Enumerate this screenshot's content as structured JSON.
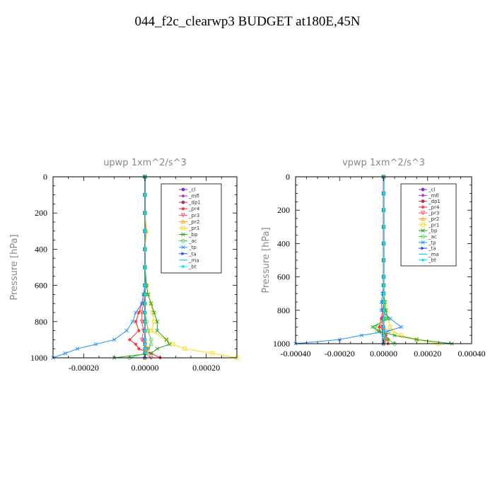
{
  "title": "044_f2c_clearwp3  BUDGET at180E,45N",
  "chart_data": [
    {
      "type": "line",
      "title": "upwp   1xm^2/s^3",
      "xlabel": "",
      "ylabel": "Pressure [hPa]",
      "xlim": [
        -0.0003,
        0.0003
      ],
      "ylim": [
        1000,
        0
      ],
      "x_ticks": [
        "-0.00020",
        "0.00000",
        "0.00020"
      ],
      "y_ticks": [
        "0",
        "200",
        "400",
        "600",
        "800",
        "1000"
      ],
      "legend_position": "top-right",
      "y": [
        0,
        100,
        200,
        300,
        400,
        500,
        600,
        650,
        700,
        750,
        800,
        850,
        900,
        925,
        950,
        975,
        1000
      ],
      "series": [
        {
          "name": "_cl",
          "color": "#8a2be2",
          "marker": "circle",
          "values": [
            0,
            0,
            0,
            0,
            0,
            0,
            0,
            0,
            0,
            0,
            0,
            0,
            0,
            0,
            0,
            0,
            0
          ]
        },
        {
          "name": "_mfl",
          "color": "#9932cc",
          "marker": "diamond",
          "values": [
            0,
            0,
            0,
            0,
            0,
            0,
            0,
            0,
            0,
            0,
            0,
            0,
            0,
            0,
            0,
            0,
            0
          ]
        },
        {
          "name": "_dp1",
          "color": "#b03060",
          "marker": "circle",
          "values": [
            0,
            0,
            0,
            0,
            0,
            0,
            0,
            0,
            0,
            0,
            0,
            0,
            0,
            0,
            0,
            0,
            0
          ]
        },
        {
          "name": "_pr4",
          "color": "#ff2020",
          "marker": "star",
          "values": [
            0,
            0,
            0,
            0,
            0,
            0,
            5e-06,
            -5e-06,
            -1e-05,
            -2e-05,
            -3e-05,
            -2e-05,
            -5e-05,
            -3e-05,
            -2e-05,
            2e-05,
            5e-05
          ]
        },
        {
          "name": "_pr3",
          "color": "#ff4060",
          "marker": "triangle-down",
          "values": [
            0,
            0,
            0,
            0,
            0,
            0,
            0,
            0,
            -5e-06,
            -1e-05,
            -1e-05,
            -5e-06,
            -1e-05,
            0,
            1e-05,
            0,
            2e-05
          ]
        },
        {
          "name": "_pr2",
          "color": "#ffa500",
          "marker": "triangle",
          "values": [
            0,
            0,
            0,
            5e-06,
            0,
            0,
            0,
            0,
            0,
            0,
            0,
            0,
            0,
            0,
            0,
            0,
            0
          ]
        },
        {
          "name": "_pr1",
          "color": "#ffd700",
          "marker": "square",
          "values": [
            0,
            0,
            0,
            0,
            0,
            0,
            5e-06,
            1e-05,
            2e-05,
            2.5e-05,
            3e-05,
            2e-05,
            7e-05,
            9e-05,
            0.00013,
            0.00022,
            0.0003
          ]
        },
        {
          "name": "_bp",
          "color": "#20a020",
          "marker": "x",
          "values": [
            0,
            0,
            0,
            0,
            0,
            0,
            5e-06,
            1e-05,
            2e-05,
            3e-05,
            4e-05,
            4e-05,
            7e-05,
            8e-05,
            4e-05,
            2e-05,
            -0.0001
          ]
        },
        {
          "name": "_ac",
          "color": "#40d040",
          "marker": "circle-open",
          "values": [
            0,
            0,
            0,
            0,
            0,
            0,
            0,
            0,
            0,
            0,
            5e-06,
            1e-05,
            2e-05,
            2e-05,
            1e-05,
            0,
            -5e-05
          ]
        },
        {
          "name": "_tp",
          "color": "#1e90ff",
          "marker": "x",
          "values": [
            0,
            0,
            0,
            0,
            0,
            0,
            0,
            -5e-06,
            -1e-05,
            -3e-05,
            -4e-05,
            -6e-05,
            -0.0001,
            -0.00016,
            -0.00022,
            -0.00026,
            -0.0003
          ]
        },
        {
          "name": "_ta",
          "color": "#2040ff",
          "marker": "triangle-right",
          "values": [
            0,
            0,
            0,
            0,
            0,
            0,
            0,
            0,
            0,
            0,
            0,
            0,
            0,
            0,
            0,
            0,
            0
          ]
        },
        {
          "name": "_ma",
          "color": "#00bfff",
          "marker": "dash",
          "values": [
            0,
            0,
            0,
            0,
            0,
            0,
            0,
            0,
            0,
            0,
            0,
            0,
            0,
            0,
            0,
            0,
            0
          ]
        },
        {
          "name": "_bt",
          "color": "#00e5ee",
          "marker": "diamond",
          "values": [
            0,
            0,
            0,
            0,
            0,
            0,
            0,
            0,
            0,
            0,
            0,
            0,
            0,
            0,
            0,
            0,
            0
          ]
        }
      ]
    },
    {
      "type": "line",
      "title": "vpwp   1xm^2/s^3",
      "xlabel": "",
      "ylabel": "Pressure [hPa]",
      "xlim": [
        -0.0004,
        0.0004
      ],
      "ylim": [
        1000,
        0
      ],
      "x_ticks": [
        "-0.00040",
        "-0.00020",
        "0.00000",
        "0.00020",
        "0.00040"
      ],
      "y_ticks": [
        "0",
        "200",
        "400",
        "600",
        "800",
        "1000"
      ],
      "legend_position": "top-right",
      "y": [
        0,
        100,
        200,
        300,
        400,
        500,
        600,
        650,
        700,
        750,
        800,
        850,
        900,
        925,
        950,
        975,
        1000
      ],
      "series": [
        {
          "name": "_cl",
          "color": "#8a2be2",
          "marker": "circle",
          "values": [
            0,
            0,
            0,
            0,
            0,
            0,
            0,
            0,
            0,
            0,
            0,
            0,
            0,
            0,
            0,
            0,
            0
          ]
        },
        {
          "name": "_mfl",
          "color": "#9932cc",
          "marker": "diamond",
          "values": [
            0,
            0,
            0,
            0,
            0,
            0,
            0,
            0,
            0,
            0,
            0,
            0,
            0,
            0,
            0,
            0,
            0
          ]
        },
        {
          "name": "_dp1",
          "color": "#b03060",
          "marker": "circle",
          "values": [
            0,
            0,
            0,
            0,
            0,
            0,
            0,
            0,
            0,
            0,
            0,
            0,
            0,
            0,
            0,
            0,
            0
          ]
        },
        {
          "name": "_pr4",
          "color": "#ff2020",
          "marker": "star",
          "values": [
            0,
            0,
            0,
            0,
            0,
            0,
            0,
            0,
            0,
            0,
            -5e-06,
            -1e-05,
            -2e-05,
            -2e-05,
            1e-05,
            2e-05,
            2e-05
          ]
        },
        {
          "name": "_pr3",
          "color": "#ff4060",
          "marker": "triangle-down",
          "values": [
            0,
            0,
            0,
            0,
            0,
            0,
            0,
            0,
            0,
            0,
            0,
            -5e-06,
            -1e-05,
            0,
            1e-05,
            1e-05,
            0
          ]
        },
        {
          "name": "_pr2",
          "color": "#ffa500",
          "marker": "triangle",
          "values": [
            0,
            0,
            0,
            0,
            0,
            0,
            0,
            0,
            0,
            0,
            0,
            0,
            0,
            0,
            0,
            0,
            0
          ]
        },
        {
          "name": "_pr1",
          "color": "#ffd700",
          "marker": "square",
          "values": [
            0,
            0,
            0,
            0,
            0,
            0,
            0,
            0,
            0,
            5e-06,
            1e-05,
            2e-05,
            3e-05,
            4e-05,
            8e-05,
            0.00015,
            0.00025
          ]
        },
        {
          "name": "_bp",
          "color": "#20a020",
          "marker": "x",
          "values": [
            0,
            0,
            0,
            0,
            0,
            0,
            0,
            0,
            0,
            5e-06,
            1e-05,
            2e-05,
            -5e-05,
            -2e-05,
            5e-05,
            0.00015,
            0.00031
          ]
        },
        {
          "name": "_ac",
          "color": "#40d040",
          "marker": "circle-open",
          "values": [
            0,
            0,
            0,
            0,
            0,
            0,
            0,
            0,
            0,
            0,
            5e-06,
            1e-05,
            -4e-05,
            -3e-05,
            0,
            2e-05,
            5e-05
          ]
        },
        {
          "name": "_tp",
          "color": "#1e90ff",
          "marker": "x",
          "values": [
            0,
            0,
            0,
            0,
            0,
            0,
            0,
            0,
            -5e-06,
            -1e-05,
            -1e-05,
            3e-05,
            8e-05,
            2e-05,
            -0.0001,
            -0.0002,
            -0.0004
          ]
        },
        {
          "name": "_ta",
          "color": "#2040ff",
          "marker": "triangle-right",
          "values": [
            0,
            0,
            0,
            0,
            0,
            0,
            0,
            0,
            0,
            0,
            0,
            0,
            0,
            0,
            0,
            0,
            0
          ]
        },
        {
          "name": "_ma",
          "color": "#00bfff",
          "marker": "dash",
          "values": [
            0,
            0,
            0,
            0,
            0,
            0,
            0,
            0,
            0,
            0,
            0,
            0,
            0,
            0,
            0,
            0,
            0
          ]
        },
        {
          "name": "_bt",
          "color": "#00e5ee",
          "marker": "diamond",
          "values": [
            0,
            0,
            0,
            0,
            0,
            0,
            0,
            0,
            0,
            0,
            0,
            0,
            0,
            0,
            0,
            0,
            0
          ]
        }
      ]
    }
  ]
}
